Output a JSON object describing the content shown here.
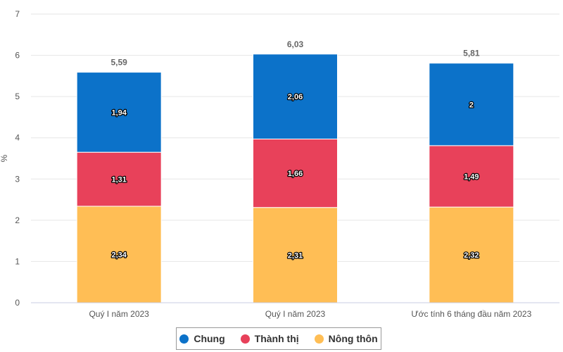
{
  "chart_data": {
    "type": "bar",
    "stacked": true,
    "categories": [
      "Quý I năm 2023",
      "Quý I năm 2023",
      "Ước tính 6 tháng đầu năm 2023"
    ],
    "series": [
      {
        "name": "Nông thôn",
        "color": "#FFBE55",
        "values": [
          2.34,
          2.31,
          2.32
        ],
        "labels": [
          "2,34",
          "2,31",
          "2,32"
        ]
      },
      {
        "name": "Thành thị",
        "color": "#E8415A",
        "values": [
          1.31,
          1.66,
          1.49
        ],
        "labels": [
          "1,31",
          "1,66",
          "1,49"
        ]
      },
      {
        "name": "Chung",
        "color": "#0C72C9",
        "values": [
          1.94,
          2.06,
          2.0
        ],
        "labels": [
          "1,94",
          "2,06",
          "2"
        ]
      }
    ],
    "totals": [
      "5,59",
      "6,03",
      "5,81"
    ],
    "total_values": [
      5.59,
      6.03,
      5.81
    ],
    "ylabel": "%",
    "ylim": [
      0,
      7
    ],
    "yticks": [
      "0",
      "1",
      "2",
      "3",
      "4",
      "5",
      "6",
      "7"
    ],
    "grid": true,
    "legend": {
      "position": "bottom",
      "items": [
        {
          "name": "Chung",
          "color": "#0C72C9"
        },
        {
          "name": "Thành thị",
          "color": "#E8415A"
        },
        {
          "name": "Nông thôn",
          "color": "#FFBE55"
        }
      ]
    }
  }
}
